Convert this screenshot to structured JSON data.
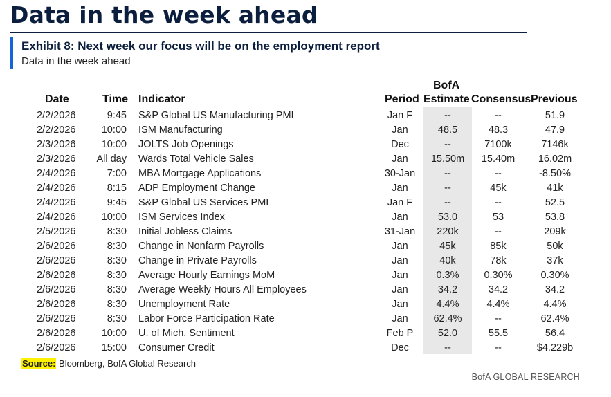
{
  "page_title": "Data in the week ahead",
  "exhibit": {
    "heading": "Exhibit 8: Next week our focus will be on the employment report",
    "subheading": "Data in the week ahead"
  },
  "table": {
    "headers": {
      "date": "Date",
      "time": "Time",
      "indicator": "Indicator",
      "period": "Period",
      "estimate_line1": "BofA",
      "estimate_line2": "Estimate",
      "consensus": "Consensus",
      "previous": "Previous"
    },
    "rows": [
      {
        "date": "2/2/2026",
        "time": "9:45",
        "indicator": "S&P Global US Manufacturing PMI",
        "period": "Jan F",
        "estimate": "--",
        "consensus": "--",
        "previous": "51.9"
      },
      {
        "date": "2/2/2026",
        "time": "10:00",
        "indicator": "ISM Manufacturing",
        "period": "Jan",
        "estimate": "48.5",
        "consensus": "48.3",
        "previous": "47.9"
      },
      {
        "date": "2/3/2026",
        "time": "10:00",
        "indicator": "JOLTS Job Openings",
        "period": "Dec",
        "estimate": "--",
        "consensus": "7100k",
        "previous": "7146k"
      },
      {
        "date": "2/3/2026",
        "time": "All day",
        "indicator": "Wards Total Vehicle Sales",
        "period": "Jan",
        "estimate": "15.50m",
        "consensus": "15.40m",
        "previous": "16.02m"
      },
      {
        "date": "2/4/2026",
        "time": "7:00",
        "indicator": "MBA Mortgage Applications",
        "period": "30-Jan",
        "estimate": "--",
        "consensus": "--",
        "previous": "-8.50%"
      },
      {
        "date": "2/4/2026",
        "time": "8:15",
        "indicator": "ADP Employment Change",
        "period": "Jan",
        "estimate": "--",
        "consensus": "45k",
        "previous": "41k"
      },
      {
        "date": "2/4/2026",
        "time": "9:45",
        "indicator": "S&P Global US Services PMI",
        "period": "Jan F",
        "estimate": "--",
        "consensus": "--",
        "previous": "52.5"
      },
      {
        "date": "2/4/2026",
        "time": "10:00",
        "indicator": "ISM Services Index",
        "period": "Jan",
        "estimate": "53.0",
        "consensus": "53",
        "previous": "53.8"
      },
      {
        "date": "2/5/2026",
        "time": "8:30",
        "indicator": "Initial Jobless Claims",
        "period": "31-Jan",
        "estimate": "220k",
        "consensus": "--",
        "previous": "209k"
      },
      {
        "date": "2/6/2026",
        "time": "8:30",
        "indicator": "Change in Nonfarm Payrolls",
        "period": "Jan",
        "estimate": "45k",
        "consensus": "85k",
        "previous": "50k"
      },
      {
        "date": "2/6/2026",
        "time": "8:30",
        "indicator": "Change in Private Payrolls",
        "period": "Jan",
        "estimate": "40k",
        "consensus": "78k",
        "previous": "37k"
      },
      {
        "date": "2/6/2026",
        "time": "8:30",
        "indicator": "Average Hourly Earnings MoM",
        "period": "Jan",
        "estimate": "0.3%",
        "consensus": "0.30%",
        "previous": "0.30%"
      },
      {
        "date": "2/6/2026",
        "time": "8:30",
        "indicator": "Average Weekly Hours All Employees",
        "period": "Jan",
        "estimate": "34.2",
        "consensus": "34.2",
        "previous": "34.2"
      },
      {
        "date": "2/6/2026",
        "time": "8:30",
        "indicator": "Unemployment Rate",
        "period": "Jan",
        "estimate": "4.4%",
        "consensus": "4.4%",
        "previous": "4.4%"
      },
      {
        "date": "2/6/2026",
        "time": "8:30",
        "indicator": "Labor Force Participation Rate",
        "period": "Jan",
        "estimate": "62.4%",
        "consensus": "--",
        "previous": "62.4%"
      },
      {
        "date": "2/6/2026",
        "time": "10:00",
        "indicator": "U. of Mich. Sentiment",
        "period": "Feb P",
        "estimate": "52.0",
        "consensus": "55.5",
        "previous": "56.4"
      },
      {
        "date": "2/6/2026",
        "time": "15:00",
        "indicator": "Consumer Credit",
        "period": "Dec",
        "estimate": "--",
        "consensus": "--",
        "previous": "$4.229b"
      }
    ]
  },
  "source": {
    "label": "Source:",
    "text": " Bloomberg, BofA Global Research"
  },
  "footer_brand": "BofA GLOBAL RESEARCH",
  "colors": {
    "title": "#0b1e3d",
    "accent_bar": "#1565d8",
    "estimate_shade": "#e8e8e8",
    "source_highlight": "#fff200"
  }
}
